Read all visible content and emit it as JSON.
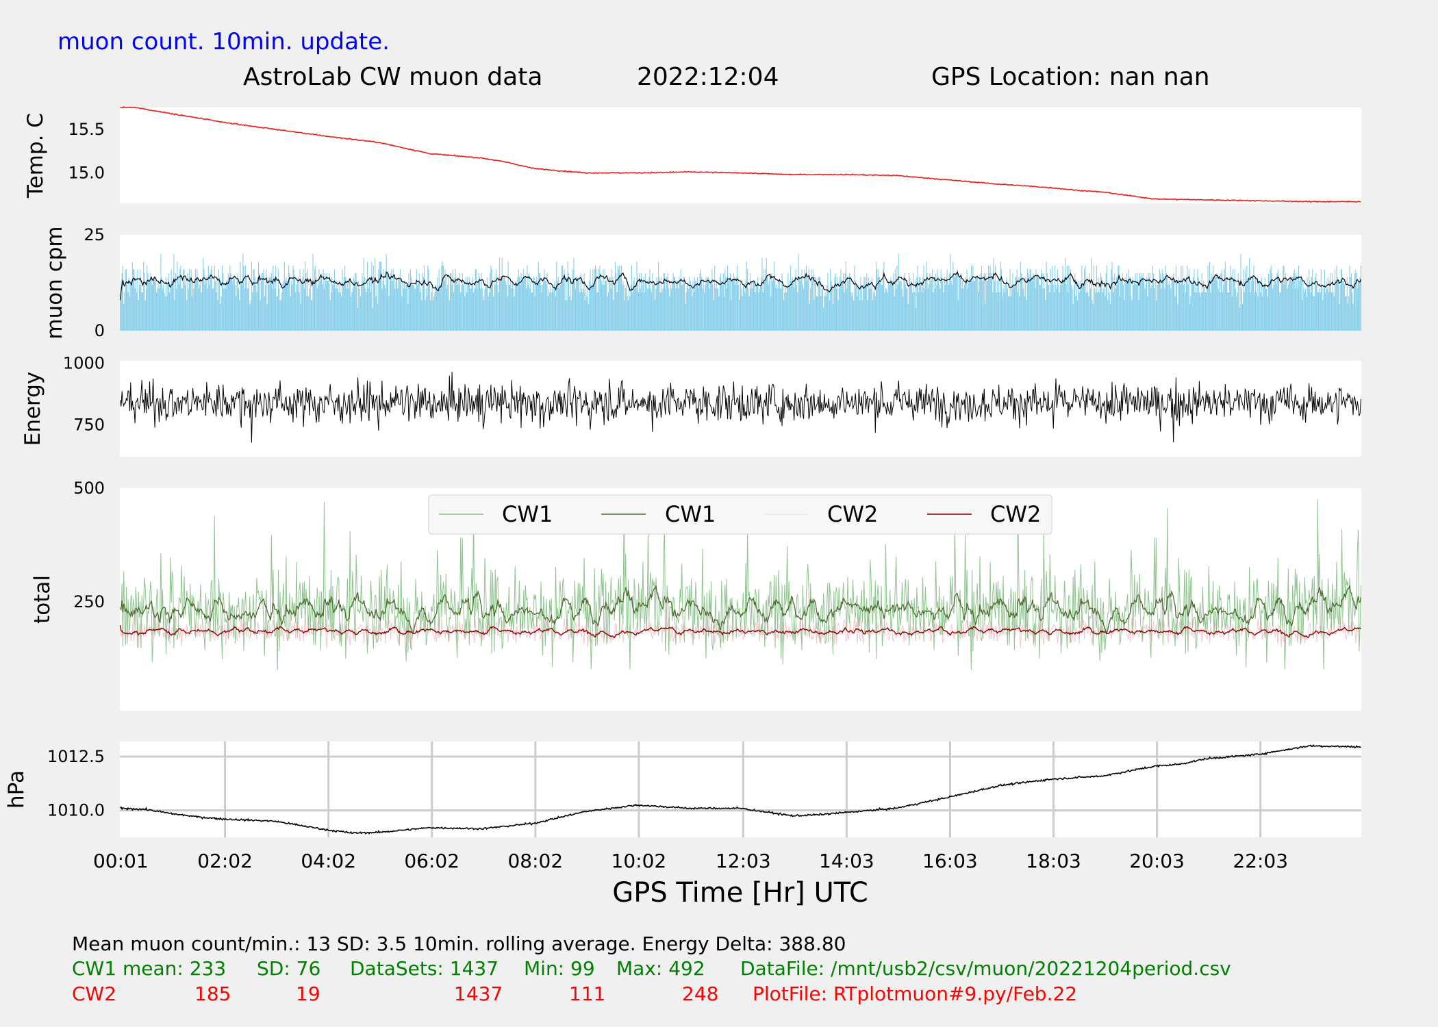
{
  "header": {
    "subtitle": "muon count.  10min. update.",
    "title_left": "AstroLab CW muon data",
    "title_date": "2022:12:04",
    "title_gps": "GPS Location: nan   nan"
  },
  "xaxis": {
    "label": "GPS Time  [Hr] UTC",
    "ticks": [
      "00:01",
      "02:02",
      "04:02",
      "06:02",
      "08:02",
      "10:02",
      "12:03",
      "14:03",
      "16:03",
      "18:03",
      "20:03",
      "22:03"
    ],
    "tick_hours": [
      0.017,
      2.033,
      4.033,
      6.033,
      8.033,
      10.033,
      12.05,
      14.05,
      16.05,
      18.05,
      20.05,
      22.05
    ],
    "range_hours": [
      0.0,
      24.0
    ],
    "grid": "bottom panel only"
  },
  "colors": {
    "temp": "#e8201a",
    "muon_bar": "#87ceeb",
    "muon_avg": "#000000",
    "energy": "#000000",
    "cw1_raw": "#8fc48f",
    "cw1_avg": "#4f6a2f",
    "cw2_raw": "#f5c6cc",
    "cw2_avg": "#8b0000",
    "pressure": "#000000",
    "stats_neutral": "#000000",
    "stats_cw1": "#008000",
    "stats_cw2": "#ff0000",
    "title_blue": "#0000ff"
  },
  "chart_data": [
    {
      "type": "line",
      "ylabel": "Temp. C",
      "yticks": [
        15.5,
        15.0
      ],
      "ylim": [
        14.65,
        15.75
      ],
      "x_hours": [
        0.0,
        0.3,
        1.0,
        2.0,
        3.0,
        4.0,
        5.0,
        6.0,
        7.0,
        7.5,
        8.0,
        9.0,
        10.0,
        11.0,
        12.0,
        13.0,
        14.0,
        15.0,
        16.0,
        17.0,
        18.0,
        18.5,
        19.0,
        20.0,
        21.0,
        22.0,
        23.0,
        24.0
      ],
      "values": [
        15.75,
        15.75,
        15.68,
        15.58,
        15.5,
        15.42,
        15.35,
        15.22,
        15.17,
        15.12,
        15.05,
        15.0,
        15.0,
        15.01,
        15.0,
        14.98,
        14.98,
        14.97,
        14.92,
        14.87,
        14.83,
        14.8,
        14.78,
        14.7,
        14.69,
        14.68,
        14.67,
        14.67
      ]
    },
    {
      "type": "bar+line",
      "ylabel": "muon cpm",
      "yticks": [
        25,
        0
      ],
      "ylim": [
        0,
        25
      ],
      "mean": 13,
      "sd": 3.5,
      "count": 1437,
      "rolling_window_min": 10
    },
    {
      "type": "line",
      "ylabel": "Energy",
      "yticks": [
        1000,
        750
      ],
      "ylim": [
        620,
        1010
      ],
      "center": 840,
      "spread": 55
    },
    {
      "type": "line",
      "ylabel": "total",
      "yticks": [
        500,
        250
      ],
      "ylim": [
        10,
        500
      ],
      "legend": [
        "CW1",
        "CW1",
        "CW2",
        "CW2"
      ],
      "legend_position": "upper center",
      "series": [
        {
          "name": "CW1",
          "style": "raw",
          "mean": 233,
          "sd": 76,
          "min": 99,
          "max": 492,
          "datasets": 1437
        },
        {
          "name": "CW2",
          "style": "raw",
          "mean": 185,
          "sd": 19,
          "min": 111,
          "max": 248,
          "datasets": 1437
        }
      ]
    },
    {
      "type": "line",
      "ylabel": "hPa",
      "yticks": [
        1012.5,
        1010.0
      ],
      "ylim": [
        1008.75,
        1013.2
      ],
      "grid": true,
      "x_hours": [
        0.0,
        0.5,
        1.0,
        1.5,
        2.0,
        3.0,
        3.5,
        4.0,
        4.5,
        5.0,
        6.0,
        7.0,
        8.0,
        9.0,
        10.0,
        11.0,
        12.0,
        13.0,
        13.5,
        14.0,
        15.0,
        16.0,
        17.0,
        18.0,
        19.0,
        20.0,
        20.5,
        21.0,
        22.0,
        23.0,
        24.0
      ],
      "values": [
        1010.1,
        1010.05,
        1009.85,
        1009.7,
        1009.6,
        1009.5,
        1009.3,
        1009.1,
        1008.95,
        1008.98,
        1009.2,
        1009.15,
        1009.4,
        1009.95,
        1010.25,
        1010.1,
        1010.1,
        1009.75,
        1009.8,
        1009.9,
        1010.1,
        1010.6,
        1011.15,
        1011.45,
        1011.6,
        1012.05,
        1012.15,
        1012.4,
        1012.6,
        1013.0,
        1012.95
      ]
    }
  ],
  "stats": {
    "line1": "Mean muon count/min.: 13  SD: 3.5   10min. rolling average.    Energy Delta:  388.80",
    "cw1": [
      "CW1 mean: 233",
      "SD: 76",
      "DataSets: 1437",
      "Min: 99",
      "Max: 492",
      "DataFile: /mnt/usb2/csv/muon/20221204period.csv"
    ],
    "cw2": [
      "CW2",
      "185",
      "19",
      "1437",
      "111",
      "248",
      "PlotFile: RTplotmuon#9.py/Feb.22"
    ]
  }
}
